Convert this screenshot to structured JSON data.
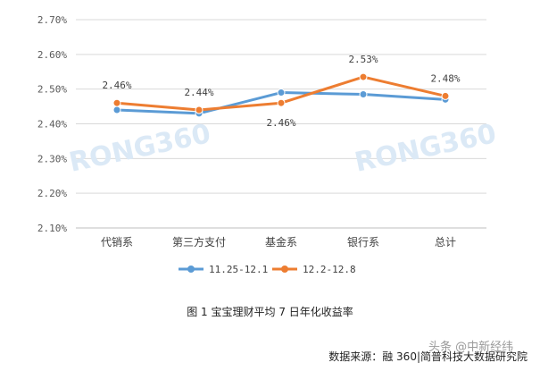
{
  "chart_data": {
    "type": "line",
    "categories": [
      "代销系",
      "第三方支付",
      "基金系",
      "银行系",
      "总计"
    ],
    "y_ticks": [
      "2.10%",
      "2.20%",
      "2.30%",
      "2.40%",
      "2.50%",
      "2.60%",
      "2.70%"
    ],
    "ylim": [
      2.1,
      2.7
    ],
    "grid": true,
    "legend_position": "bottom",
    "series": [
      {
        "name": "11.25-12.1",
        "color": "#5b9bd5",
        "values": [
          2.44,
          2.43,
          2.49,
          2.485,
          2.47
        ]
      },
      {
        "name": "12.2-12.8",
        "color": "#ed7d31",
        "values": [
          2.46,
          2.44,
          2.46,
          2.535,
          2.48
        ]
      }
    ],
    "data_labels": [
      "2.46%",
      "2.44%",
      "2.46%",
      "2.53%",
      "2.48%"
    ]
  },
  "watermark": "RONG360",
  "caption": "图 1 宝宝理财平均 7 日年化收益率",
  "source": "数据来源：融 360|简普科技大数据研究院",
  "overlay": "头条 @中新经纬"
}
